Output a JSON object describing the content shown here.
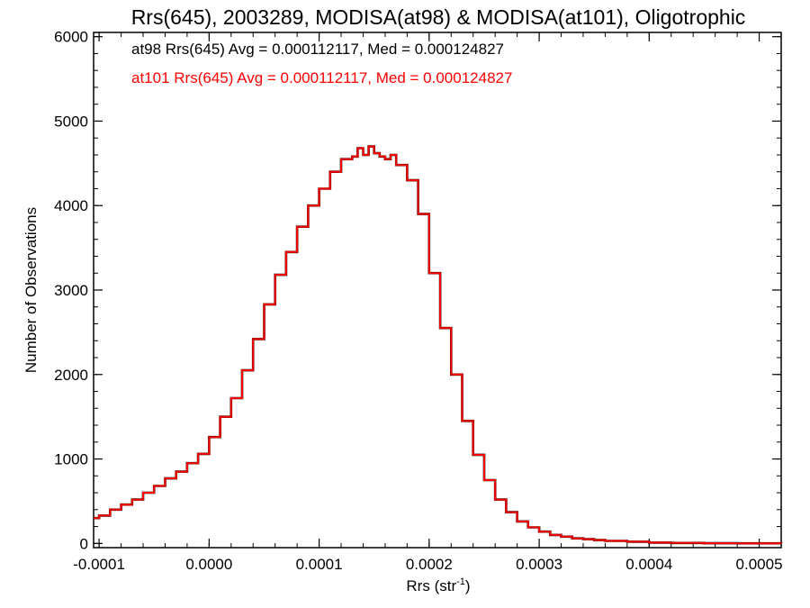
{
  "chart_data": {
    "type": "line",
    "title": "Rrs(645), 2003289, MODISA(at98) & MODISA(at101), Oligotrophic",
    "xlabel": "Rrs (str",
    "xlabel_sup": "-1",
    "xlabel_end": ")",
    "ylabel": "Number of Observations",
    "xlim": [
      -0.000105,
      0.00052
    ],
    "ylim": [
      -50,
      6050
    ],
    "x_ticks": [
      -0.0001,
      0.0,
      0.0001,
      0.0002,
      0.0003,
      0.0004,
      0.0005
    ],
    "x_tick_labels": [
      "-0.0001",
      "0.0000",
      "0.0001",
      "0.0002",
      "0.0003",
      "0.0004",
      "0.0005"
    ],
    "y_ticks": [
      0,
      1000,
      2000,
      3000,
      4000,
      5000,
      6000
    ],
    "y_tick_labels": [
      "0",
      "1000",
      "2000",
      "3000",
      "4000",
      "5000",
      "6000"
    ],
    "annotations": [
      {
        "text": "at98 Rrs(645) Avg = 0.000112117, Med = 0.000124827",
        "color": "#000000"
      },
      {
        "text": "at101 Rrs(645) Avg = 0.000112117, Med = 0.000124827",
        "color": "#ff0000"
      }
    ],
    "series": [
      {
        "color": "#000000",
        "x": [
          -0.000105,
          -0.0001,
          -9e-05,
          -8e-05,
          -7e-05,
          -6e-05,
          -5e-05,
          -4e-05,
          -3e-05,
          -2e-05,
          -1e-05,
          0.0,
          1e-05,
          2e-05,
          3e-05,
          4e-05,
          5e-05,
          6e-05,
          7e-05,
          8e-05,
          9e-05,
          0.0001,
          0.00011,
          0.00012,
          0.00013,
          0.000135,
          0.00014,
          0.000145,
          0.00015,
          0.000155,
          0.00016,
          0.000165,
          0.00017,
          0.00018,
          0.00019,
          0.0002,
          0.00021,
          0.00022,
          0.00023,
          0.00024,
          0.00025,
          0.00026,
          0.00027,
          0.00028,
          0.00029,
          0.0003,
          0.00031,
          0.00032,
          0.00033,
          0.00034,
          0.00035,
          0.00036,
          0.00038,
          0.0004,
          0.00042,
          0.00045,
          0.00048,
          0.00052
        ],
        "y": [
          300,
          330,
          400,
          460,
          520,
          600,
          680,
          770,
          850,
          950,
          1060,
          1260,
          1500,
          1720,
          2050,
          2420,
          2830,
          3180,
          3450,
          3750,
          4000,
          4200,
          4400,
          4550,
          4580,
          4680,
          4600,
          4700,
          4620,
          4580,
          4550,
          4600,
          4480,
          4300,
          3900,
          3200,
          2550,
          2000,
          1450,
          1050,
          750,
          520,
          370,
          260,
          190,
          140,
          100,
          80,
          60,
          50,
          40,
          30,
          20,
          10,
          5,
          2,
          1,
          0
        ]
      },
      {
        "color": "#ff0000",
        "x": [
          -0.000105,
          -0.0001,
          -9e-05,
          -8e-05,
          -7e-05,
          -6e-05,
          -5e-05,
          -4e-05,
          -3e-05,
          -2e-05,
          -1e-05,
          0.0,
          1e-05,
          2e-05,
          3e-05,
          4e-05,
          5e-05,
          6e-05,
          7e-05,
          8e-05,
          9e-05,
          0.0001,
          0.00011,
          0.00012,
          0.00013,
          0.000135,
          0.00014,
          0.000145,
          0.00015,
          0.000155,
          0.00016,
          0.000165,
          0.00017,
          0.00018,
          0.00019,
          0.0002,
          0.00021,
          0.00022,
          0.00023,
          0.00024,
          0.00025,
          0.00026,
          0.00027,
          0.00028,
          0.00029,
          0.0003,
          0.00031,
          0.00032,
          0.00033,
          0.00034,
          0.00035,
          0.00036,
          0.00038,
          0.0004,
          0.00042,
          0.00045,
          0.00048,
          0.00052
        ],
        "y": [
          300,
          330,
          400,
          460,
          520,
          600,
          680,
          770,
          850,
          950,
          1060,
          1260,
          1500,
          1720,
          2050,
          2420,
          2830,
          3180,
          3450,
          3750,
          4000,
          4200,
          4400,
          4550,
          4580,
          4680,
          4600,
          4700,
          4620,
          4580,
          4550,
          4600,
          4480,
          4300,
          3900,
          3200,
          2550,
          2000,
          1450,
          1050,
          750,
          520,
          370,
          260,
          190,
          140,
          100,
          80,
          60,
          50,
          40,
          30,
          20,
          10,
          5,
          2,
          1,
          0
        ]
      }
    ],
    "grid": false,
    "legend": "top-left"
  }
}
